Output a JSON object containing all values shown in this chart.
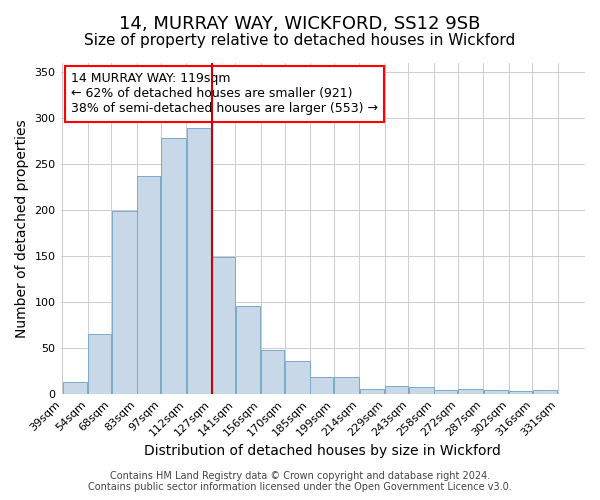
{
  "title": "14, MURRAY WAY, WICKFORD, SS12 9SB",
  "subtitle": "Size of property relative to detached houses in Wickford",
  "xlabel": "Distribution of detached houses by size in Wickford",
  "ylabel": "Number of detached properties",
  "bar_color": "#c8d8e8",
  "bar_edge_color": "#7aaac8",
  "background_color": "#ffffff",
  "grid_color": "#cccccc",
  "vline_color": "#cc0000",
  "vline_x": 127,
  "bins": [
    39,
    54,
    68,
    83,
    97,
    112,
    127,
    141,
    156,
    170,
    185,
    199,
    214,
    229,
    243,
    258,
    272,
    287,
    302,
    316,
    331,
    346
  ],
  "bin_labels": [
    "39sqm",
    "54sqm",
    "68sqm",
    "83sqm",
    "97sqm",
    "112sqm",
    "127sqm",
    "141sqm",
    "156sqm",
    "170sqm",
    "185sqm",
    "199sqm",
    "214sqm",
    "229sqm",
    "243sqm",
    "258sqm",
    "272sqm",
    "287sqm",
    "302sqm",
    "316sqm",
    "331sqm"
  ],
  "counts": [
    13,
    65,
    199,
    237,
    278,
    289,
    149,
    96,
    48,
    36,
    19,
    19,
    5,
    9,
    8,
    4,
    5,
    4,
    3,
    4,
    0
  ],
  "ylim": [
    0,
    360
  ],
  "yticks": [
    0,
    50,
    100,
    150,
    200,
    250,
    300,
    350
  ],
  "annotation_title": "14 MURRAY WAY: 119sqm",
  "annotation_line1": "← 62% of detached houses are smaller (921)",
  "annotation_line2": "38% of semi-detached houses are larger (553) →",
  "footer1": "Contains HM Land Registry data © Crown copyright and database right 2024.",
  "footer2": "Contains public sector information licensed under the Open Government Licence v3.0.",
  "title_fontsize": 13,
  "subtitle_fontsize": 11,
  "axis_label_fontsize": 10,
  "tick_fontsize": 8,
  "annotation_fontsize": 9,
  "footer_fontsize": 7
}
